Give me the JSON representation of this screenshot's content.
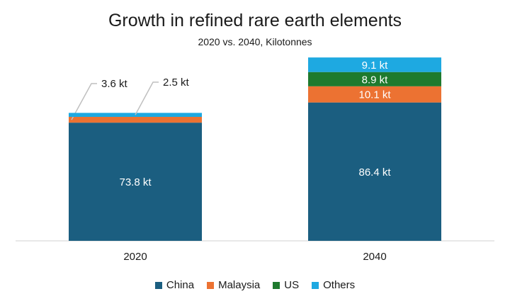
{
  "chart_data": {
    "type": "bar",
    "stacked": true,
    "title": "Growth in refined rare earth elements",
    "subtitle": "2020 vs. 2040, Kilotonnes",
    "categories": [
      "2020",
      "2040"
    ],
    "series": [
      {
        "name": "China",
        "color": "#1b5e80",
        "values": [
          73.8,
          86.4
        ],
        "labels": [
          "73.8 kt",
          "86.4 kt"
        ]
      },
      {
        "name": "Malaysia",
        "color": "#ec7232",
        "values": [
          3.6,
          10.1
        ],
        "labels": [
          "3.6 kt",
          "10.1 kt"
        ]
      },
      {
        "name": "US",
        "color": "#1e7a2e",
        "values": [
          0,
          8.9
        ],
        "labels": [
          "",
          "8.9 kt"
        ]
      },
      {
        "name": "Others",
        "color": "#1ea9e1",
        "values": [
          2.5,
          9.1
        ],
        "labels": [
          "2.5 kt",
          "9.1 kt"
        ]
      }
    ],
    "ylim": [
      0,
      115
    ],
    "grid": false,
    "legend_position": "bottom"
  }
}
